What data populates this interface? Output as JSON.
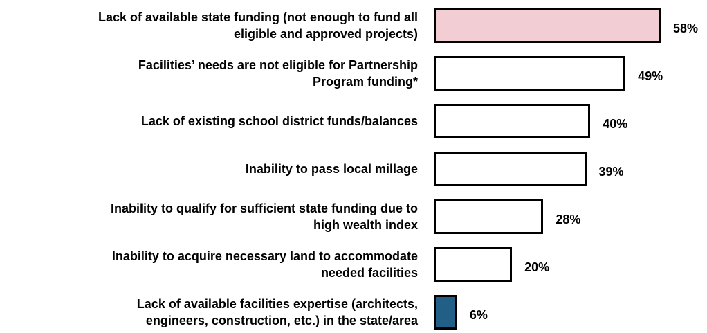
{
  "chart_data": {
    "type": "bar",
    "orientation": "horizontal",
    "categories": [
      "Lack of available state funding (not enough to fund all\neligible and approved projects)",
      "Facilities’ needs are not eligible for Partnership\nProgram funding*",
      "Lack of existing school district funds/balances",
      "Inability to pass local millage",
      "Inability to qualify for sufficient state funding due to\nhigh wealth index",
      "Inability to acquire necessary land to accommodate\nneeded facilities",
      "Lack of available facilities expertise (architects,\nengineers, construction, etc.) in the state/area"
    ],
    "values": [
      58,
      49,
      40,
      39,
      28,
      20,
      6
    ],
    "value_labels": [
      "58%",
      "49%",
      "40%",
      "39%",
      "28%",
      "20%",
      "6%"
    ],
    "colors": [
      "#f2ced4",
      "#ffffff",
      "#ffffff",
      "#ffffff",
      "#ffffff",
      "#ffffff",
      "#215f87"
    ]
  }
}
